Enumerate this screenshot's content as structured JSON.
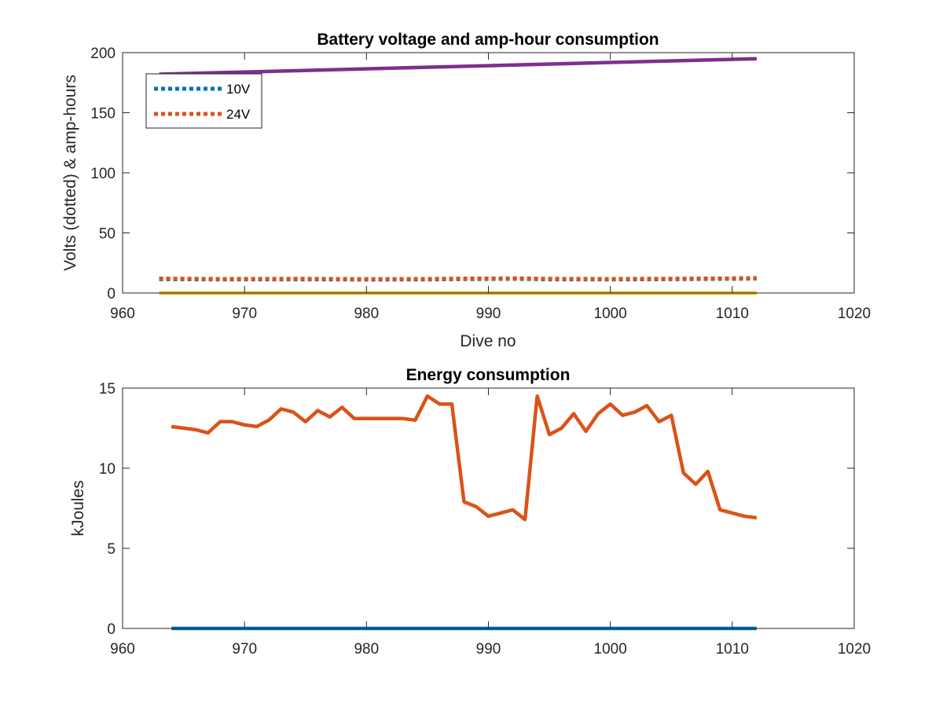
{
  "chart_data": [
    {
      "type": "line",
      "title": "Battery voltage and amp-hour consumption",
      "xlabel": "Dive no",
      "ylabel": "Volts (dotted) & amp-hours",
      "xlim": [
        960,
        1020
      ],
      "ylim": [
        0,
        200
      ],
      "xticks": [
        960,
        970,
        980,
        990,
        1000,
        1010,
        1020
      ],
      "yticks": [
        0,
        50,
        100,
        150,
        200
      ],
      "grid": false,
      "legend_position": "top-left",
      "series": [
        {
          "name": "10V",
          "color": "#0072BD",
          "style": "dotted",
          "x": [
            963,
            968,
            975,
            980,
            985,
            988,
            992,
            995,
            1000,
            1005,
            1010,
            1012
          ],
          "y": [
            11.5,
            11.3,
            11.4,
            11.2,
            11.3,
            11.6,
            11.8,
            11.4,
            11.3,
            11.5,
            11.8,
            12
          ]
        },
        {
          "name": "24V",
          "color": "#D95319",
          "style": "dotted",
          "x": [
            963,
            968,
            975,
            980,
            985,
            988,
            992,
            995,
            1000,
            1005,
            1010,
            1012
          ],
          "y": [
            12,
            11.7,
            11.8,
            11.6,
            11.7,
            12,
            12.2,
            11.8,
            11.7,
            11.9,
            12.2,
            12.4
          ]
        },
        {
          "name": "",
          "color": "#EDB120",
          "style": "solid",
          "x": [
            963,
            1012
          ],
          "y": [
            0,
            0
          ]
        },
        {
          "name": "",
          "color": "#7E2F8E",
          "style": "solid",
          "x": [
            963,
            1012
          ],
          "y": [
            182,
            195
          ]
        }
      ]
    },
    {
      "type": "line",
      "title": "Energy consumption",
      "xlabel": "",
      "ylabel": "kJoules",
      "xlim": [
        960,
        1020
      ],
      "ylim": [
        0,
        15
      ],
      "xticks": [
        960,
        970,
        980,
        990,
        1000,
        1010,
        1020
      ],
      "yticks": [
        0,
        5,
        10,
        15
      ],
      "grid": false,
      "series": [
        {
          "name": "",
          "color": "#0072BD",
          "style": "solid",
          "x": [
            964,
            1012
          ],
          "y": [
            0,
            0
          ]
        },
        {
          "name": "",
          "color": "#D95319",
          "style": "solid",
          "x": [
            964,
            965,
            966,
            967,
            968,
            969,
            970,
            971,
            972,
            973,
            974,
            975,
            976,
            977,
            978,
            979,
            980,
            981,
            982,
            983,
            984,
            985,
            986,
            987,
            988,
            989,
            990,
            991,
            992,
            993,
            994,
            995,
            996,
            997,
            998,
            999,
            1000,
            1001,
            1002,
            1003,
            1004,
            1005,
            1006,
            1007,
            1008,
            1009,
            1010,
            1011,
            1012
          ],
          "y": [
            12.6,
            12.5,
            12.4,
            12.2,
            12.9,
            12.9,
            12.7,
            12.6,
            13.0,
            13.7,
            13.5,
            12.9,
            13.6,
            13.2,
            13.8,
            13.1,
            13.1,
            13.1,
            13.1,
            13.1,
            13.0,
            14.5,
            14.0,
            14.0,
            7.9,
            7.6,
            7.0,
            7.2,
            7.4,
            6.8,
            14.5,
            12.1,
            12.5,
            13.4,
            12.3,
            13.4,
            14.0,
            13.3,
            13.5,
            13.9,
            12.9,
            13.3,
            9.7,
            9.0,
            9.8,
            7.4,
            7.2,
            7.0,
            6.9
          ]
        }
      ]
    }
  ]
}
